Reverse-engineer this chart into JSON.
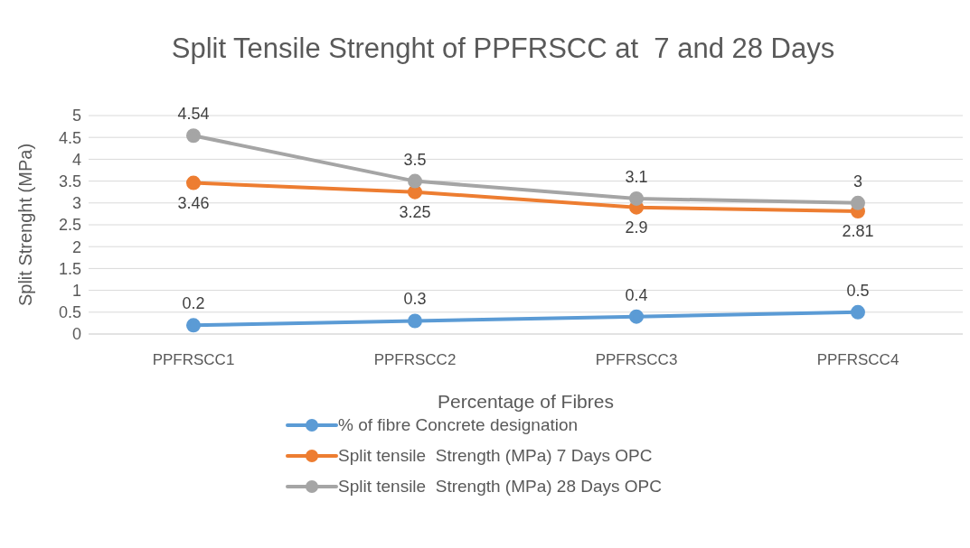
{
  "chart_data": {
    "type": "line",
    "title": "Split Tensile Strenght of PPFRSCC at  7 and 28 Days",
    "xlabel": "Percentage of Fibres",
    "ylabel": "Split Strenght (MPa)",
    "categories": [
      "PPFRSCC1",
      "PPFRSCC2",
      "PPFRSCC3",
      "PPFRSCC4"
    ],
    "series": [
      {
        "name": "% of fibre Concrete designation",
        "color": "#5b9bd5",
        "values": [
          0.2,
          0.3,
          0.4,
          0.5
        ]
      },
      {
        "name": "Split tensile  Strength (MPa) 7 Days OPC",
        "color": "#ed7d31",
        "values": [
          3.46,
          3.25,
          2.9,
          2.81
        ]
      },
      {
        "name": "Split tensile  Strength (MPa) 28 Days OPC",
        "color": "#a5a5a5",
        "values": [
          4.54,
          3.5,
          3.1,
          3
        ]
      }
    ],
    "ylim": [
      0,
      5
    ],
    "yticks": [
      0,
      0.5,
      1,
      1.5,
      2,
      2.5,
      3,
      3.5,
      4,
      4.5,
      5
    ],
    "grid": "y",
    "legend": "bottom",
    "marker": "circle",
    "line_style": "solid",
    "data_labels": true
  }
}
